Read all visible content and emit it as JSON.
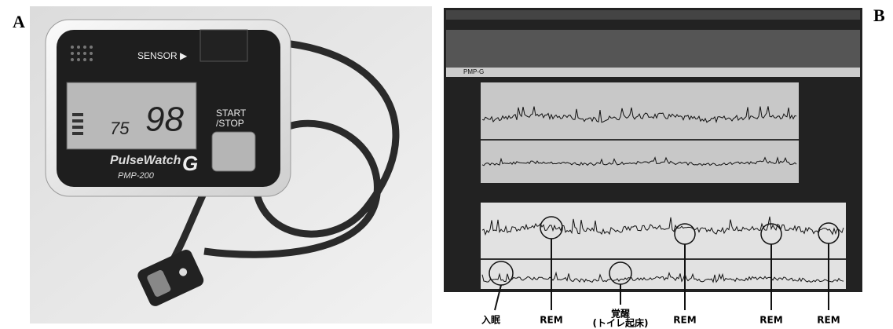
{
  "panels": {
    "a": {
      "label": "A",
      "device": {
        "sensor": "SENSOR ▶",
        "pulse": "75",
        "spo2": "98",
        "button_line1": "START",
        "button_line2": "/STOP",
        "brand": "PulseWatch",
        "model": "PMP-200",
        "letter": "G"
      }
    },
    "b": {
      "label": "B",
      "software": {
        "device_name": "PMP-G"
      },
      "annotations": [
        "入眠",
        "REM",
        "覚醒",
        "(トイレ起床)",
        "REM",
        "REM",
        "REM"
      ]
    }
  }
}
